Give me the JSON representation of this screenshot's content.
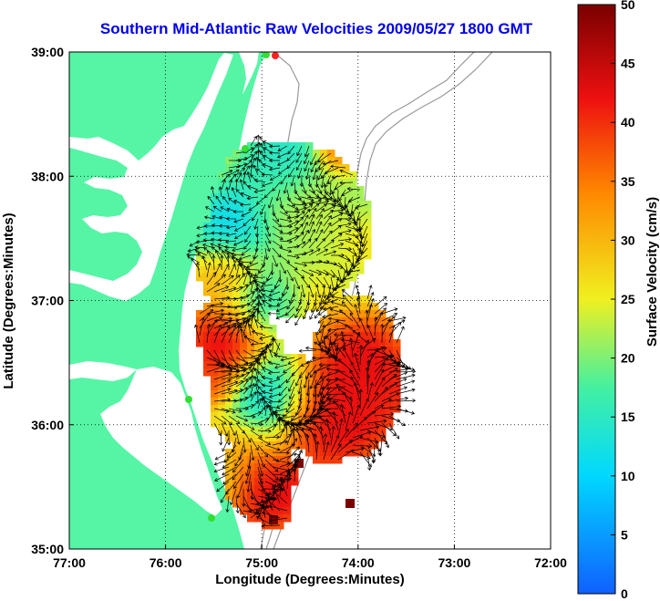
{
  "title": "Southern Mid-Atlantic Raw Velocities 2009/05/27 1800 GMT",
  "map": {
    "xlabel": "Longitude (Degrees:Minutes)",
    "ylabel": "Latitude (Degrees:Minutes)",
    "xticks": [
      "77:00",
      "76:00",
      "75:00",
      "74:00",
      "73:00",
      "72:00"
    ],
    "yticks": [
      "39:00",
      "38:00",
      "37:00",
      "36:00",
      "35:00"
    ],
    "lon_range": [
      -77,
      -72
    ],
    "lat_range": [
      35,
      39
    ],
    "colors": {
      "land": "#55f5a5",
      "water": "#ffffff",
      "bathymetry": "#999999",
      "station_marker": "#33dd33",
      "station_marker_alt": "#ff2222"
    }
  },
  "colorbar": {
    "label": "Surface Velocity (cm/s)",
    "ticks": [
      "0",
      "5",
      "10",
      "15",
      "20",
      "25",
      "30",
      "35",
      "40",
      "45",
      "50"
    ],
    "range": [
      0,
      50
    ],
    "colors": [
      "#1060ff",
      "#00d8ff",
      "#44f0a0",
      "#f0f020",
      "#ff8800",
      "#ee1010",
      "#7a0000"
    ]
  }
}
